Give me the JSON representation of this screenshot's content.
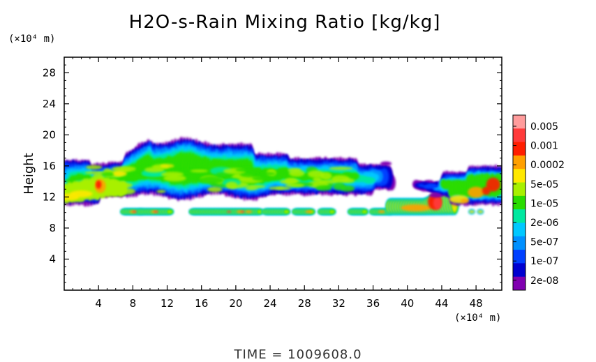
{
  "chart_data": {
    "type": "heatmap",
    "title": "H2O-s-Rain Mixing Ratio [kg/kg]",
    "ylabel": "Height",
    "xlabel": "",
    "y_unit": "(×10⁴ m)",
    "x_unit": "(×10⁴ m)",
    "xlim": [
      0,
      51
    ],
    "ylim": [
      0,
      30
    ],
    "x_ticks": [
      4,
      8,
      12,
      16,
      20,
      24,
      28,
      32,
      36,
      40,
      44,
      48
    ],
    "y_ticks": [
      4,
      8,
      12,
      16,
      20,
      24,
      28
    ],
    "colorbar": {
      "labels": [
        "0.005",
        "0.001",
        "0.0002",
        "5e-05",
        "1e-05",
        "2e-06",
        "5e-07",
        "1e-07",
        "2e-08"
      ],
      "colors": [
        "#ff9c9c",
        "#ff3a3a",
        "#ff1e00",
        "#ffa000",
        "#ffe800",
        "#a8f000",
        "#2adc00",
        "#00e8a0",
        "#00c8ff",
        "#0090ff",
        "#0040ff",
        "#0000d0",
        "#8000b0"
      ]
    },
    "regions": [
      {
        "name": "main-upper-band",
        "x": [
          0,
          38
        ],
        "y": [
          12,
          18
        ],
        "level": "1e-05"
      },
      {
        "name": "upper-cap",
        "x": [
          8,
          25
        ],
        "y": [
          18,
          20
        ],
        "level": "5e-07"
      },
      {
        "name": "low-left-tongue",
        "x": [
          0,
          6
        ],
        "y": [
          11.5,
          14.5
        ],
        "level": "5e-05"
      },
      {
        "name": "lower-layer",
        "x": [
          7,
          30
        ],
        "y": [
          9.8,
          10.8
        ],
        "level": "2e-06"
      },
      {
        "name": "right-lower-core",
        "x": [
          38,
          45
        ],
        "y": [
          10,
          12
        ],
        "level": "0.0002"
      },
      {
        "name": "right-upper-band",
        "x": [
          42,
          51
        ],
        "y": [
          11,
          16
        ],
        "level": "5e-05"
      }
    ]
  },
  "footer": {
    "time_label": "TIME  =  1009608.0"
  }
}
